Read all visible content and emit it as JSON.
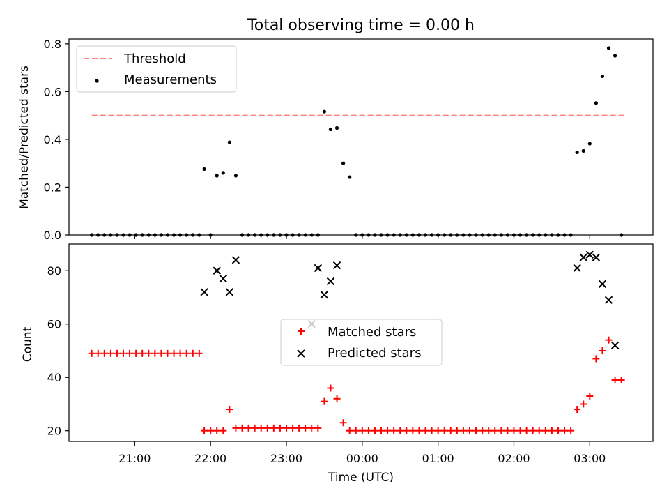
{
  "chart_data": [
    {
      "type": "scatter",
      "title": "Total observing time = 0.00 h",
      "xlabel": "",
      "ylabel": "Matched/Predicted stars",
      "ylim": [
        0,
        0.82
      ],
      "yticks": [
        "0.0",
        "0.2",
        "0.4",
        "0.6",
        "0.8"
      ],
      "legend_position": "top-left",
      "series": [
        {
          "name": "Threshold",
          "style": "dashed-line",
          "color": "#ff7f7f",
          "x": [
            "20:26",
            "03:27"
          ],
          "y": [
            0.5,
            0.5
          ]
        },
        {
          "name": "Measurements",
          "style": "dot",
          "color": "#000000",
          "x": [
            "20:26",
            "20:31",
            "20:36",
            "20:41",
            "20:46",
            "20:51",
            "20:56",
            "21:01",
            "21:06",
            "21:11",
            "21:16",
            "21:21",
            "21:26",
            "21:31",
            "21:36",
            "21:41",
            "21:46",
            "21:51",
            "21:55",
            "22:00",
            "22:05",
            "22:10",
            "22:15",
            "22:20",
            "22:25",
            "22:30",
            "22:35",
            "22:40",
            "22:45",
            "22:50",
            "22:55",
            "23:00",
            "23:05",
            "23:10",
            "23:15",
            "23:20",
            "23:25",
            "23:30",
            "23:35",
            "23:40",
            "23:45",
            "23:50",
            "23:55",
            "00:00",
            "00:05",
            "00:10",
            "00:15",
            "00:20",
            "00:25",
            "00:30",
            "00:35",
            "00:40",
            "00:45",
            "00:50",
            "00:55",
            "01:00",
            "01:05",
            "01:10",
            "01:15",
            "01:20",
            "01:25",
            "01:30",
            "01:35",
            "01:40",
            "01:45",
            "01:50",
            "01:55",
            "02:00",
            "02:05",
            "02:10",
            "02:15",
            "02:20",
            "02:25",
            "02:30",
            "02:35",
            "02:40",
            "02:45",
            "02:50",
            "02:55",
            "03:00",
            "03:05",
            "03:10",
            "03:15",
            "03:20",
            "03:25"
          ],
          "y": [
            0,
            0,
            0,
            0,
            0,
            0,
            0,
            0,
            0,
            0,
            0,
            0,
            0,
            0,
            0,
            0,
            0,
            0,
            0.276,
            0,
            0.248,
            0.26,
            0.388,
            0.248,
            0,
            0,
            0,
            0,
            0,
            0,
            0,
            0,
            0,
            0,
            0,
            0,
            0,
            0.516,
            0.442,
            0.448,
            0.3,
            0.242,
            0,
            0,
            0,
            0,
            0,
            0,
            0,
            0,
            0,
            0,
            0,
            0,
            0,
            0,
            0,
            0,
            0,
            0,
            0,
            0,
            0,
            0,
            0,
            0,
            0,
            0,
            0,
            0,
            0,
            0,
            0,
            0,
            0,
            0,
            0,
            0.346,
            0.352,
            0.382,
            0.552,
            0.664,
            0.782,
            0.75,
            0
          ]
        }
      ]
    },
    {
      "type": "scatter",
      "title": "",
      "xlabel": "Time (UTC)",
      "ylabel": "Count",
      "ylim": [
        16,
        90
      ],
      "yticks": [
        "20",
        "40",
        "60",
        "80"
      ],
      "xtick_labels": [
        "21:00",
        "22:00",
        "23:00",
        "00:00",
        "01:00",
        "02:00",
        "03:00"
      ],
      "xlim": [
        "20:08",
        "03:50"
      ],
      "legend_position": "center",
      "series": [
        {
          "name": "Matched stars",
          "marker": "plus",
          "color": "#ff0000",
          "x": [
            "20:26",
            "20:31",
            "20:36",
            "20:41",
            "20:46",
            "20:51",
            "20:56",
            "21:01",
            "21:06",
            "21:11",
            "21:16",
            "21:21",
            "21:26",
            "21:31",
            "21:36",
            "21:41",
            "21:46",
            "21:51",
            "21:55",
            "22:00",
            "22:05",
            "22:10",
            "22:15",
            "22:20",
            "22:25",
            "22:30",
            "22:35",
            "22:40",
            "22:45",
            "22:50",
            "22:55",
            "23:00",
            "23:05",
            "23:10",
            "23:15",
            "23:20",
            "23:25",
            "23:30",
            "23:35",
            "23:40",
            "23:45",
            "23:50",
            "23:55",
            "00:00",
            "00:05",
            "00:10",
            "00:15",
            "00:20",
            "00:25",
            "00:30",
            "00:35",
            "00:40",
            "00:45",
            "00:50",
            "00:55",
            "01:00",
            "01:05",
            "01:10",
            "01:15",
            "01:20",
            "01:25",
            "01:30",
            "01:35",
            "01:40",
            "01:45",
            "01:50",
            "01:55",
            "02:00",
            "02:05",
            "02:10",
            "02:15",
            "02:20",
            "02:25",
            "02:30",
            "02:35",
            "02:40",
            "02:45",
            "02:50",
            "02:55",
            "03:00",
            "03:05",
            "03:10",
            "03:15",
            "03:20",
            "03:25"
          ],
          "y": [
            49,
            49,
            49,
            49,
            49,
            49,
            49,
            49,
            49,
            49,
            49,
            49,
            49,
            49,
            49,
            49,
            49,
            49,
            20,
            20,
            20,
            20,
            28,
            21,
            21,
            21,
            21,
            21,
            21,
            21,
            21,
            21,
            21,
            21,
            21,
            21,
            21,
            31,
            36,
            32,
            23,
            20,
            20,
            20,
            20,
            20,
            20,
            20,
            20,
            20,
            20,
            20,
            20,
            20,
            20,
            20,
            20,
            20,
            20,
            20,
            20,
            20,
            20,
            20,
            20,
            20,
            20,
            20,
            20,
            20,
            20,
            20,
            20,
            20,
            20,
            20,
            20,
            28,
            30,
            33,
            47,
            50,
            54,
            39,
            39
          ]
        },
        {
          "name": "Predicted stars",
          "marker": "x",
          "color": "#000000",
          "x": [
            "21:55",
            "22:05",
            "22:10",
            "22:15",
            "22:20",
            "23:20",
            "23:25",
            "23:30",
            "23:35",
            "23:40",
            "02:50",
            "02:55",
            "03:00",
            "03:05",
            "03:10",
            "03:15",
            "03:20"
          ],
          "y": [
            72,
            80,
            77,
            72,
            84,
            60,
            81,
            71,
            76,
            82,
            81,
            85,
            86,
            85,
            75,
            69,
            52
          ]
        }
      ]
    }
  ]
}
